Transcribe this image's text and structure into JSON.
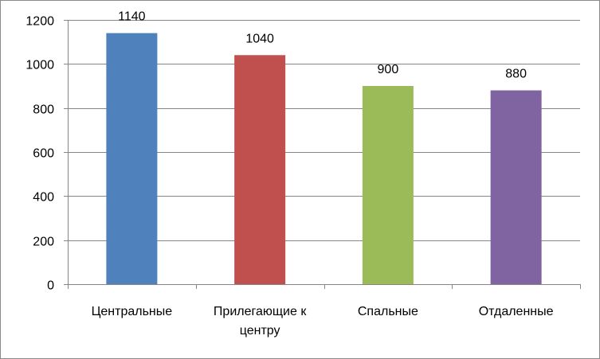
{
  "chart_data": {
    "type": "bar",
    "title": "",
    "xlabel": "",
    "ylabel": "",
    "categories": [
      [
        "Центральные"
      ],
      [
        "Прилегающие к",
        "центру"
      ],
      [
        "Спальные"
      ],
      [
        "Отдаленные"
      ]
    ],
    "values": [
      1140,
      1040,
      900,
      880
    ],
    "data_labels": [
      "1140",
      "1040",
      "900",
      "880"
    ],
    "colors": [
      "#4f81bd",
      "#c0504d",
      "#9bbb59",
      "#8064a2"
    ],
    "ylim": [
      0,
      1200
    ],
    "yticks": [
      0,
      200,
      400,
      600,
      800,
      1000,
      1200
    ],
    "grid": true,
    "gridline_color": "#868686",
    "legend": "none"
  }
}
